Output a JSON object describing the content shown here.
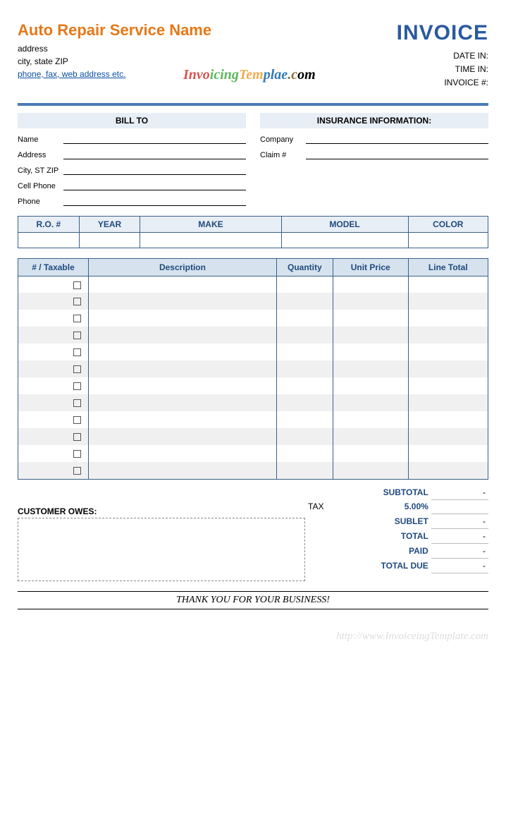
{
  "company": {
    "name": "Auto Repair Service Name",
    "address": "address",
    "city_state_zip": "city, state ZIP",
    "contact_link": "phone, fax, web address etc."
  },
  "invoice": {
    "title": "INVOICE",
    "meta": {
      "date_in_label": "DATE IN:",
      "time_in_label": "TIME IN:",
      "invoice_num_label": "INVOICE #:"
    }
  },
  "watermark_text": "InvoicingTemplae.com",
  "sections": {
    "bill_to": {
      "heading": "BILL TO",
      "fields": [
        "Name",
        "Address",
        "City, ST ZIP",
        "Cell Phone",
        "Phone"
      ]
    },
    "insurance": {
      "heading": "INSURANCE INFORMATION:",
      "fields": [
        "Company",
        "Claim #"
      ]
    }
  },
  "vehicle_table": {
    "headers": [
      "R.O. #",
      "YEAR",
      "MAKE",
      "MODEL",
      "COLOR"
    ],
    "col_widths": [
      "13%",
      "13%",
      "30%",
      "27%",
      "17%"
    ]
  },
  "items_table": {
    "headers": [
      "# / Taxable",
      "Description",
      "Quantity",
      "Unit Price",
      "Line Total"
    ],
    "col_widths": [
      "15%",
      "40%",
      "12%",
      "16%",
      "17%"
    ],
    "row_count": 12
  },
  "totals": {
    "tax_word": "TAX",
    "rows": [
      {
        "label": "SUBTOTAL",
        "value": "-"
      },
      {
        "label": "5.00%",
        "value": ""
      },
      {
        "label": "SUBLET",
        "value": "-"
      },
      {
        "label": "TOTAL",
        "value": "-"
      },
      {
        "label": "PAID",
        "value": "-"
      },
      {
        "label": "TOTAL DUE",
        "value": "-"
      }
    ]
  },
  "owes": {
    "label": "CUSTOMER OWES:"
  },
  "thanks": "THANK YOU FOR YOUR BUSINESS!",
  "footer_watermark": "http://www.InvoiceingTemplate.com",
  "colors": {
    "accent_orange": "#e67817",
    "accent_blue": "#2a5aa0",
    "header_bg": "#e8eef5",
    "items_header_bg": "#d6e3ef",
    "border_blue": "#3b5f8a",
    "alt_row": "#f0f0f0"
  }
}
